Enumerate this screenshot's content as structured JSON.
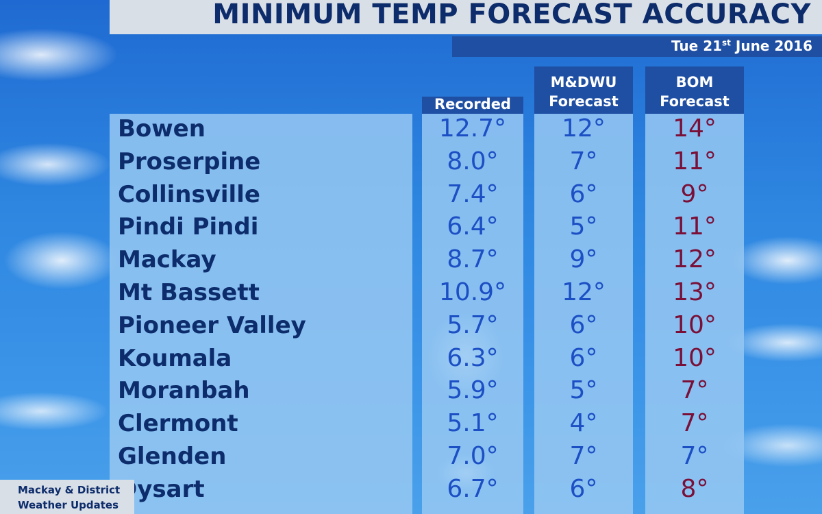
{
  "title": "MINIMUM TEMP FORECAST ACCURACY",
  "date": {
    "prefix": "Tue 21",
    "suffix": "st",
    "rest": " June 2016"
  },
  "headers": {
    "recorded": "Recorded",
    "mdwu_line1": "M&DWU",
    "mdwu_line2": "Forecast",
    "bom_line1": "BOM",
    "bom_line2": "Forecast"
  },
  "credit": {
    "line1": "Mackay & District",
    "line2": "Weather Updates"
  },
  "colors": {
    "recorded_mdwu": "#1c4fc4",
    "bom_differs": "#7a1038",
    "header_bg": "#1f4fa3",
    "title": "#0d2c6b"
  },
  "rows": [
    {
      "name": "Bowen",
      "recorded": "12.7°",
      "mdwu": "12°",
      "bom": "14°",
      "bom_match": false
    },
    {
      "name": "Proserpine",
      "recorded": "8.0°",
      "mdwu": "7°",
      "bom": "11°",
      "bom_match": false
    },
    {
      "name": "Collinsville",
      "recorded": "7.4°",
      "mdwu": "6°",
      "bom": "9°",
      "bom_match": false
    },
    {
      "name": "Pindi Pindi",
      "recorded": "6.4°",
      "mdwu": "5°",
      "bom": "11°",
      "bom_match": false
    },
    {
      "name": "Mackay",
      "recorded": "8.7°",
      "mdwu": "9°",
      "bom": "12°",
      "bom_match": false
    },
    {
      "name": "Mt Bassett",
      "recorded": "10.9°",
      "mdwu": "12°",
      "bom": "13°",
      "bom_match": false
    },
    {
      "name": "Pioneer Valley",
      "recorded": "5.7°",
      "mdwu": "6°",
      "bom": "10°",
      "bom_match": false
    },
    {
      "name": "Koumala",
      "recorded": "6.3°",
      "mdwu": "6°",
      "bom": "10°",
      "bom_match": false
    },
    {
      "name": "Moranbah",
      "recorded": "5.9°",
      "mdwu": "5°",
      "bom": "7°",
      "bom_match": false
    },
    {
      "name": "Clermont",
      "recorded": "5.1°",
      "mdwu": "4°",
      "bom": "7°",
      "bom_match": false
    },
    {
      "name": "Glenden",
      "recorded": "7.0°",
      "mdwu": "7°",
      "bom": "7°",
      "bom_match": true
    },
    {
      "name": "Dysart",
      "recorded": "6.7°",
      "mdwu": "6°",
      "bom": "8°",
      "bom_match": false
    }
  ]
}
